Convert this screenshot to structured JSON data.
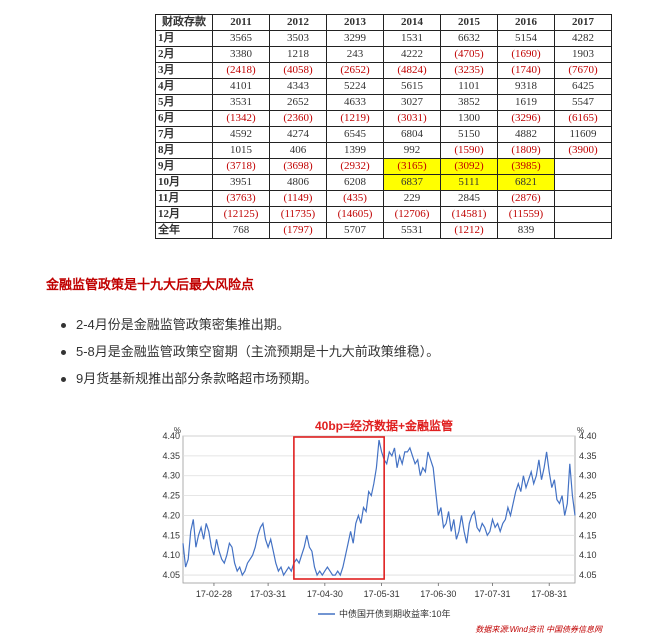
{
  "table": {
    "headers": [
      "财政存款",
      "2011",
      "2012",
      "2013",
      "2014",
      "2015",
      "2016",
      "2017"
    ],
    "rows": [
      {
        "label": "1月",
        "cells": [
          "3565",
          "3503",
          "3299",
          "1531",
          "6632",
          "5154",
          "4282"
        ]
      },
      {
        "label": "2月",
        "cells": [
          "3380",
          "1218",
          "243",
          "4222",
          "(4705)",
          "(1690)",
          "1903"
        ]
      },
      {
        "label": "3月",
        "cells": [
          "(2418)",
          "(4058)",
          "(2652)",
          "(4824)",
          "(3235)",
          "(1740)",
          "(7670)"
        ]
      },
      {
        "label": "4月",
        "cells": [
          "4101",
          "4343",
          "5224",
          "5615",
          "1101",
          "9318",
          "6425"
        ]
      },
      {
        "label": "5月",
        "cells": [
          "3531",
          "2652",
          "4633",
          "3027",
          "3852",
          "1619",
          "5547"
        ]
      },
      {
        "label": "6月",
        "cells": [
          "(1342)",
          "(2360)",
          "(1219)",
          "(3031)",
          "1300",
          "(3296)",
          "(6165)"
        ]
      },
      {
        "label": "7月",
        "cells": [
          "4592",
          "4274",
          "6545",
          "6804",
          "5150",
          "4882",
          "11609"
        ]
      },
      {
        "label": "8月",
        "cells": [
          "1015",
          "406",
          "1399",
          "992",
          "(1590)",
          "(1809)",
          "(3900)"
        ]
      },
      {
        "label": "9月",
        "cells": [
          "(3718)",
          "(3698)",
          "(2932)",
          "(3165)",
          "(3092)",
          "(3985)",
          ""
        ]
      },
      {
        "label": "10月",
        "cells": [
          "3951",
          "4806",
          "6208",
          "6837",
          "5111",
          "6821",
          ""
        ]
      },
      {
        "label": "11月",
        "cells": [
          "(3763)",
          "(1149)",
          "(435)",
          "229",
          "2845",
          "(2876)",
          ""
        ]
      },
      {
        "label": "12月",
        "cells": [
          "(12125)",
          "(11735)",
          "(14605)",
          "(12706)",
          "(14581)",
          "(11559)",
          ""
        ]
      },
      {
        "label": "全年",
        "cells": [
          "768",
          "(1797)",
          "5707",
          "5531",
          "(1212)",
          "839",
          ""
        ]
      }
    ],
    "negative_color": "#c00000",
    "highlight_color": "#ffff00"
  },
  "section_title": "金融监管政策是十九大后最大风险点",
  "bullets": [
    "2-4月份是金融监管政策密集推出期。",
    "5-8月是金融监管政策空窗期（主流预期是十九大前政策维稳）。",
    "9月货基新规推出部分条款略超市场预期。"
  ],
  "chart_data": {
    "type": "line",
    "title": "40bp=经济数据+金融监管",
    "title_color": "#e02020",
    "unit_left": "%",
    "unit_right": "%",
    "ylim": [
      4.03,
      4.4
    ],
    "yticks": [
      "4.40",
      "4.35",
      "4.30",
      "4.25",
      "4.20",
      "4.15",
      "4.10",
      "4.05"
    ],
    "xticks": [
      "17-02-28",
      "17-03-31",
      "17-04-30",
      "17-05-31",
      "17-06-30",
      "17-07-31",
      "17-08-31"
    ],
    "legend": "中债国开债到期收益率:10年",
    "source": "数据来源:Wind资讯 中国债券信息网",
    "series_color": "#4472c4",
    "annotation_box_color": "#e02020",
    "series": [
      {
        "name": "中债国开债到期收益率:10年",
        "values": [
          4.13,
          4.07,
          4.09,
          4.16,
          4.19,
          4.12,
          4.15,
          4.17,
          4.14,
          4.18,
          4.16,
          4.12,
          4.1,
          4.14,
          4.11,
          4.09,
          4.08,
          4.1,
          4.13,
          4.12,
          4.08,
          4.06,
          4.07,
          4.05,
          4.06,
          4.08,
          4.09,
          4.1,
          4.12,
          4.15,
          4.17,
          4.18,
          4.14,
          4.12,
          4.14,
          4.11,
          4.08,
          4.06,
          4.07,
          4.05,
          4.06,
          4.07,
          4.06,
          4.08,
          4.09,
          4.08,
          4.1,
          4.12,
          4.15,
          4.12,
          4.11,
          4.07,
          4.05,
          4.06,
          4.05,
          4.06,
          4.07,
          4.06,
          4.05,
          4.05,
          4.06,
          4.05,
          4.07,
          4.1,
          4.13,
          4.16,
          4.13,
          4.18,
          4.2,
          4.18,
          4.22,
          4.21,
          4.26,
          4.25,
          4.28,
          4.32,
          4.39,
          4.36,
          4.34,
          4.33,
          4.36,
          4.35,
          4.37,
          4.32,
          4.35,
          4.33,
          4.36,
          4.36,
          4.37,
          4.35,
          4.33,
          4.34,
          4.3,
          4.32,
          4.31,
          4.36,
          4.34,
          4.32,
          4.26,
          4.2,
          4.22,
          4.17,
          4.18,
          4.21,
          4.16,
          4.19,
          4.14,
          4.16,
          4.2,
          4.16,
          4.13,
          4.18,
          4.2,
          4.21,
          4.17,
          4.16,
          4.18,
          4.17,
          4.15,
          4.16,
          4.19,
          4.17,
          4.18,
          4.16,
          4.18,
          4.19,
          4.22,
          4.2,
          4.23,
          4.26,
          4.28,
          4.26,
          4.3,
          4.27,
          4.29,
          4.31,
          4.28,
          4.3,
          4.34,
          4.29,
          4.32,
          4.36,
          4.31,
          4.27,
          4.29,
          4.24,
          4.23,
          4.25,
          4.2,
          4.23,
          4.33,
          4.25,
          4.2
        ]
      }
    ]
  }
}
